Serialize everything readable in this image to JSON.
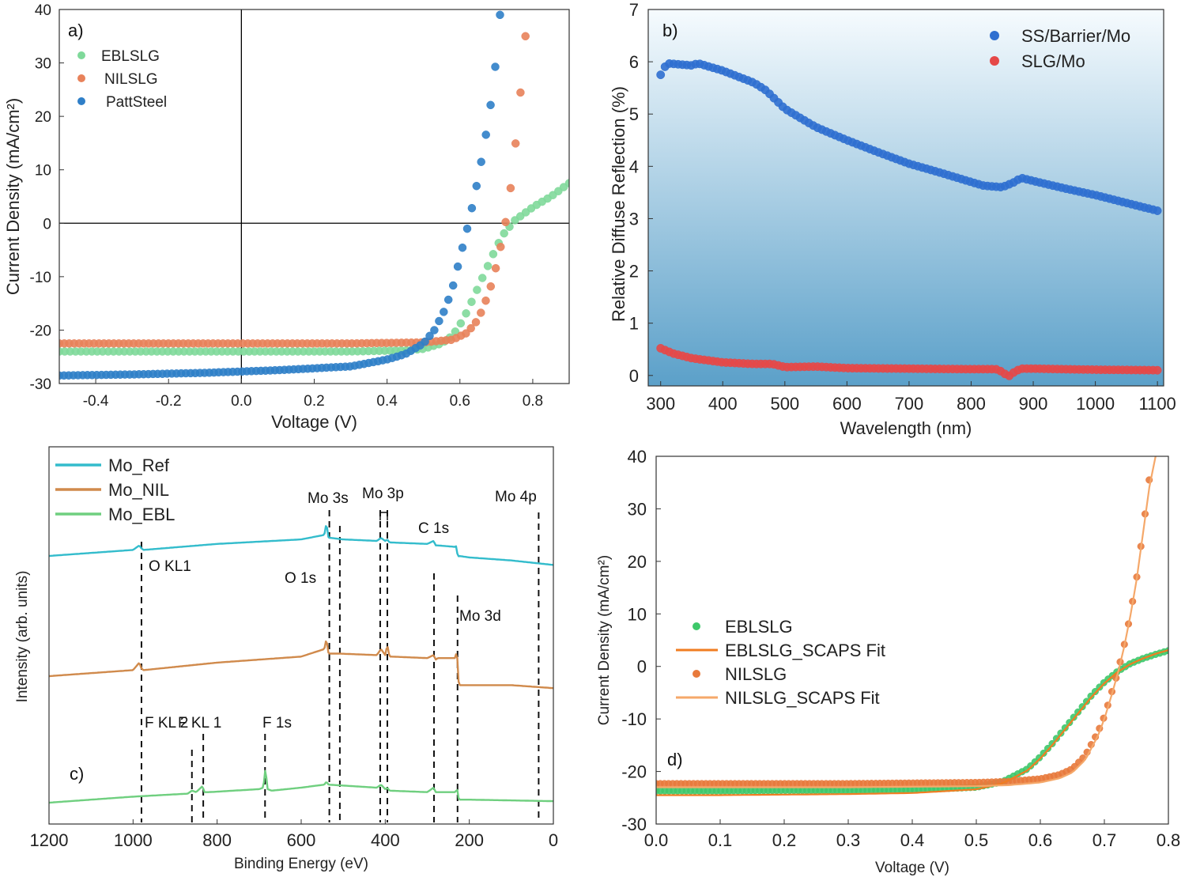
{
  "chart_data": [
    {
      "panel": "a)",
      "type": "scatter",
      "xlabel": "Voltage (V)",
      "ylabel": "Current Density (mA/cm²)",
      "xlim": [
        -0.5,
        0.9
      ],
      "ylim": [
        -30,
        40
      ],
      "xticks": [
        "-0.4",
        "-0.2",
        "0.0",
        "0.2",
        "0.4",
        "0.6",
        "0.8"
      ],
      "yticks": [
        "40",
        "30",
        "20",
        "10",
        "0",
        "-10",
        "-20",
        "-30"
      ],
      "reference_lines": {
        "x": 0,
        "y": 0
      },
      "legend": [
        "EBLSLG",
        "NILSLG",
        "PattSteel"
      ],
      "series": [
        {
          "name": "EBLSLG",
          "color": "#7fd99a",
          "x": [
            -0.5,
            -0.3,
            -0.1,
            0.1,
            0.3,
            0.45,
            0.5,
            0.55,
            0.58,
            0.6,
            0.62,
            0.65,
            0.68,
            0.7,
            0.72,
            0.75,
            0.78,
            0.8,
            0.85,
            0.9
          ],
          "y": [
            -24,
            -24,
            -24,
            -24,
            -24,
            -23.8,
            -23.5,
            -22.5,
            -21,
            -19,
            -16.5,
            -12,
            -7.5,
            -4.5,
            -2,
            0.5,
            2,
            3,
            5,
            7.5
          ]
        },
        {
          "name": "NILSLG",
          "color": "#e8825a",
          "x": [
            -0.5,
            -0.3,
            -0.1,
            0.1,
            0.3,
            0.5,
            0.58,
            0.62,
            0.65,
            0.68,
            0.7,
            0.72,
            0.73,
            0.74,
            0.75,
            0.76,
            0.77,
            0.78
          ],
          "y": [
            -22.5,
            -22.5,
            -22.5,
            -22.5,
            -22.5,
            -22.3,
            -21.8,
            -20.5,
            -18,
            -13,
            -8,
            -2,
            2,
            7,
            13,
            20,
            27,
            35
          ]
        },
        {
          "name": "PattSteel",
          "color": "#2f7fc8",
          "x": [
            -0.5,
            -0.3,
            -0.1,
            0.1,
            0.3,
            0.4,
            0.45,
            0.5,
            0.53,
            0.56,
            0.58,
            0.6,
            0.62,
            0.64,
            0.66,
            0.68,
            0.69,
            0.7,
            0.71
          ],
          "y": [
            -28.5,
            -28.3,
            -28,
            -27.5,
            -26.8,
            -25.5,
            -24.5,
            -22.5,
            -20,
            -16,
            -12,
            -6.5,
            -1,
            5,
            12,
            20,
            25,
            31,
            39
          ]
        }
      ]
    },
    {
      "panel": "b)",
      "type": "scatter",
      "xlabel": "Wavelength (nm)",
      "ylabel": "Relative Diffuse Reflection (%)",
      "xlim": [
        280,
        1110
      ],
      "ylim": [
        -0.2,
        7
      ],
      "xticks": [
        "300",
        "400",
        "500",
        "600",
        "700",
        "800",
        "900",
        "1000",
        "1100"
      ],
      "yticks": [
        "7",
        "6",
        "5",
        "4",
        "3",
        "2",
        "1",
        "0"
      ],
      "legend": [
        "SS/Barrier/Mo",
        "SLG/Mo"
      ],
      "series": [
        {
          "name": "SS/Barrier/Mo",
          "color": "#2f6fd0",
          "x": [
            300,
            310,
            350,
            360,
            400,
            450,
            470,
            500,
            550,
            600,
            650,
            700,
            750,
            800,
            820,
            850,
            870,
            880,
            900,
            950,
            1000,
            1050,
            1100
          ],
          "y": [
            5.75,
            5.97,
            5.93,
            5.97,
            5.83,
            5.6,
            5.45,
            5.1,
            4.75,
            4.5,
            4.27,
            4.05,
            3.88,
            3.7,
            3.63,
            3.6,
            3.7,
            3.78,
            3.72,
            3.58,
            3.45,
            3.3,
            3.15
          ]
        },
        {
          "name": "SLG/Mo",
          "color": "#e54848",
          "x": [
            300,
            320,
            350,
            400,
            450,
            480,
            500,
            550,
            600,
            700,
            800,
            840,
            850,
            860,
            870,
            880,
            900,
            1000,
            1100
          ],
          "y": [
            0.52,
            0.42,
            0.33,
            0.25,
            0.22,
            0.22,
            0.16,
            0.17,
            0.14,
            0.13,
            0.12,
            0.12,
            0.07,
            -0.02,
            0.07,
            0.13,
            0.13,
            0.11,
            0.1
          ]
        }
      ],
      "panel_fill": "gradient light-to-steelblue"
    },
    {
      "panel": "c)",
      "type": "line",
      "xlabel": "Binding Energy (eV)",
      "ylabel": "Intensity (arb. units)",
      "xlim": [
        1200,
        0
      ],
      "xticks": [
        "1200",
        "1000",
        "800",
        "600",
        "400",
        "200",
        "0"
      ],
      "legend": [
        "Mo_Ref",
        "Mo_NIL",
        "Mo_EBL"
      ],
      "series": [
        {
          "name": "Mo_Ref",
          "color": "#33bccc",
          "x": [
            1200,
            1000,
            985,
            980,
            975,
            800,
            600,
            545,
            540,
            535,
            530,
            500,
            420,
            410,
            400,
            395,
            390,
            300,
            285,
            280,
            275,
            232,
            230,
            228,
            225,
            200,
            100,
            0
          ],
          "y": [
            0.86,
            0.9,
            0.93,
            0.91,
            0.9,
            0.94,
            0.97,
            1.0,
            1.08,
            0.98,
            0.98,
            0.97,
            0.96,
            0.98,
            0.96,
            0.97,
            0.95,
            0.94,
            0.96,
            0.93,
            0.93,
            0.92,
            0.94,
            0.85,
            0.86,
            0.85,
            0.83,
            0.8
          ]
        },
        {
          "name": "Mo_NIL",
          "color": "#d08a4c",
          "x": [
            1200,
            1000,
            985,
            980,
            975,
            800,
            600,
            545,
            540,
            535,
            530,
            510,
            420,
            410,
            400,
            395,
            390,
            385,
            300,
            285,
            280,
            275,
            232,
            230,
            228,
            225,
            200,
            100,
            0
          ],
          "y": [
            0.43,
            0.47,
            0.52,
            0.48,
            0.47,
            0.52,
            0.56,
            0.61,
            0.68,
            0.58,
            0.58,
            0.58,
            0.57,
            0.61,
            0.57,
            0.64,
            0.56,
            0.56,
            0.55,
            0.57,
            0.54,
            0.55,
            0.55,
            0.67,
            0.5,
            0.37,
            0.37,
            0.37,
            0.35
          ]
        },
        {
          "name": "Mo_EBL",
          "color": "#6fcf7f",
          "x": [
            1200,
            1000,
            870,
            860,
            850,
            835,
            830,
            820,
            700,
            690,
            685,
            680,
            670,
            600,
            545,
            540,
            535,
            420,
            410,
            400,
            395,
            390,
            300,
            285,
            280,
            275,
            232,
            230,
            225,
            200,
            0
          ],
          "y": [
            0.0,
            0.04,
            0.06,
            0.08,
            0.07,
            0.11,
            0.07,
            0.07,
            0.09,
            0.1,
            0.23,
            0.09,
            0.08,
            0.1,
            0.12,
            0.14,
            0.12,
            0.1,
            0.12,
            0.09,
            0.1,
            0.08,
            0.07,
            0.1,
            0.07,
            0.07,
            0.07,
            0.11,
            0.02,
            0.02,
            0.01
          ]
        }
      ],
      "peak_lines": [
        {
          "x": 980,
          "label": "O KL1"
        },
        {
          "x": 533,
          "label": "O 1s"
        },
        {
          "x": 508,
          "label": "Mo 3s"
        },
        {
          "x": 412,
          "label": "Mo 3p"
        },
        {
          "x": 395,
          "label": ""
        },
        {
          "x": 284,
          "label": "C 1s"
        },
        {
          "x": 228,
          "label": "Mo 3d"
        },
        {
          "x": 35,
          "label": "Mo 4p"
        },
        {
          "x": 860,
          "label": "F KL 2"
        },
        {
          "x": 833,
          "label": "F KL 1"
        },
        {
          "x": 686,
          "label": "F 1s"
        }
      ]
    },
    {
      "panel": "d)",
      "type": "scatter",
      "xlabel": "Voltage (V)",
      "ylabel": "Current Density (mA/cm²)",
      "xlim": [
        0.0,
        0.8
      ],
      "ylim": [
        -30,
        40
      ],
      "xticks": [
        "0.0",
        "0.1",
        "0.2",
        "0.3",
        "0.4",
        "0.5",
        "0.6",
        "0.7",
        "0.8"
      ],
      "yticks": [
        "40",
        "30",
        "20",
        "10",
        "0",
        "-10",
        "-20",
        "-30"
      ],
      "legend": [
        "EBLSLG",
        "EBLSLG_SCAPS Fit",
        "NILSLG",
        "NILSLG_SCAPS Fit"
      ],
      "series": [
        {
          "name": "EBLSLG",
          "color": "#3ec86a",
          "kind": "markers",
          "x": [
            0,
            0.1,
            0.2,
            0.3,
            0.4,
            0.5,
            0.54,
            0.58,
            0.6,
            0.62,
            0.64,
            0.66,
            0.68,
            0.7,
            0.72,
            0.74,
            0.76,
            0.78,
            0.8
          ],
          "y": [
            -23.7,
            -23.7,
            -23.6,
            -23.6,
            -23.5,
            -23.0,
            -22.0,
            -19.5,
            -17.2,
            -14.5,
            -11.5,
            -8.5,
            -5.5,
            -3.0,
            -1.0,
            0.5,
            1.5,
            2.3,
            3.0
          ]
        },
        {
          "name": "EBLSLG_SCAPS Fit",
          "color": "#f07d22",
          "kind": "line",
          "x": [
            0,
            0.1,
            0.2,
            0.3,
            0.4,
            0.5,
            0.54,
            0.58,
            0.6,
            0.62,
            0.64,
            0.66,
            0.68,
            0.7,
            0.72,
            0.74,
            0.76,
            0.78,
            0.8
          ],
          "y": [
            -24.5,
            -24.5,
            -24.4,
            -24.3,
            -24.1,
            -23.4,
            -22.3,
            -19.8,
            -17.5,
            -14.8,
            -11.8,
            -8.8,
            -5.8,
            -3.2,
            -1.1,
            0.4,
            1.5,
            2.4,
            3.1
          ]
        },
        {
          "name": "NILSLG",
          "color": "#e87a3c",
          "kind": "markers",
          "x": [
            0,
            0.1,
            0.2,
            0.3,
            0.4,
            0.5,
            0.55,
            0.6,
            0.63,
            0.65,
            0.67,
            0.69,
            0.7,
            0.71,
            0.72,
            0.73,
            0.74,
            0.75,
            0.76,
            0.77
          ],
          "y": [
            -22.3,
            -22.3,
            -22.3,
            -22.3,
            -22.2,
            -22.1,
            -21.9,
            -21.4,
            -20.6,
            -19.5,
            -17.0,
            -12.5,
            -9.5,
            -5.5,
            -1.5,
            3.5,
            9.5,
            16.5,
            25.5,
            35.5
          ]
        },
        {
          "name": "NILSLG_SCAPS Fit",
          "color": "#f5a86a",
          "kind": "line",
          "x": [
            0,
            0.1,
            0.2,
            0.3,
            0.4,
            0.5,
            0.55,
            0.6,
            0.63,
            0.65,
            0.67,
            0.69,
            0.7,
            0.71,
            0.72,
            0.73,
            0.74,
            0.75,
            0.76,
            0.77,
            0.78
          ],
          "y": [
            -23.0,
            -23.0,
            -23.0,
            -23.0,
            -22.9,
            -22.8,
            -22.6,
            -22.1,
            -21.3,
            -20.2,
            -17.8,
            -13.2,
            -10.0,
            -6.0,
            -1.8,
            3.2,
            9.2,
            16.2,
            25.0,
            34.0,
            40.0
          ]
        }
      ]
    }
  ]
}
